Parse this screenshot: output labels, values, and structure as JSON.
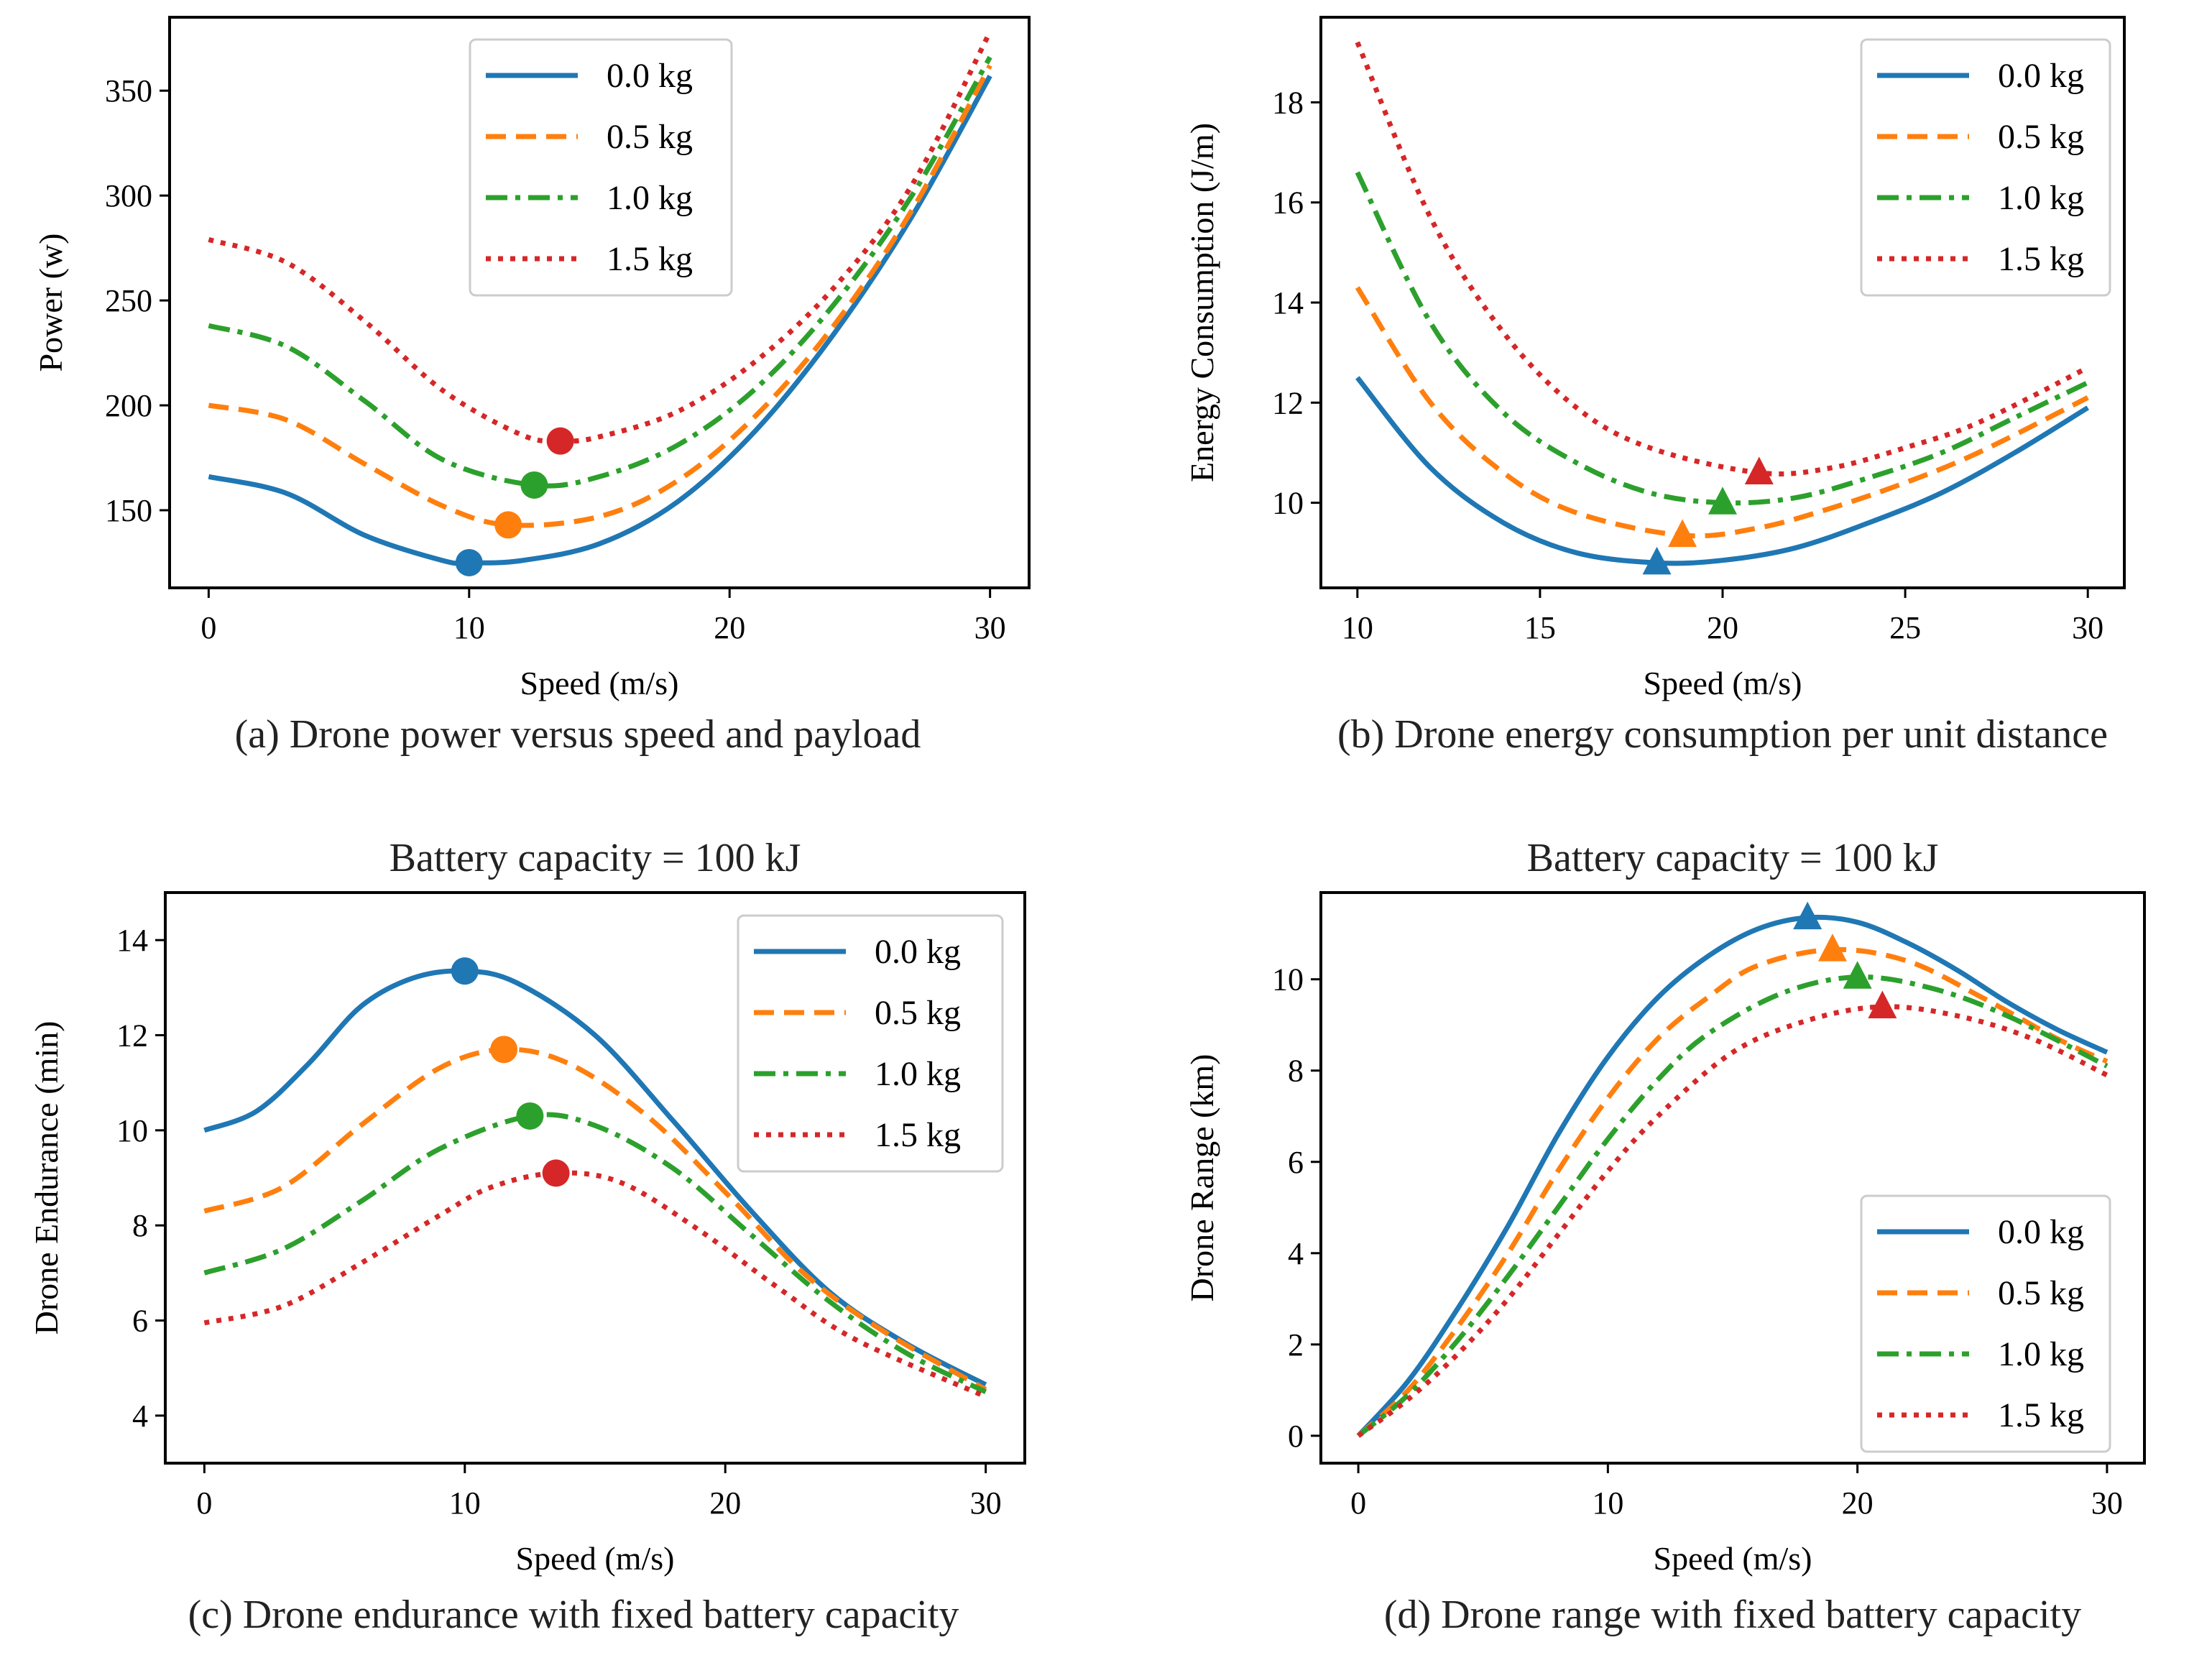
{
  "colors": {
    "s0": "#1f77b4",
    "s1": "#ff7f0e",
    "s2": "#2ca02c",
    "s3": "#d62728"
  },
  "chart_data": [
    {
      "type": "line",
      "caption": "(a) Drone power versus speed and payload",
      "title": "",
      "xlabel": "Speed (m/s)",
      "ylabel": "Power (w)",
      "xlim": [
        -1.5,
        31.5
      ],
      "ylim": [
        113,
        385
      ],
      "xticks": [
        0,
        10,
        20,
        30
      ],
      "yticks": [
        150,
        200,
        250,
        300,
        350
      ],
      "legend": "top-center",
      "marker": "circle",
      "series": [
        {
          "name": "0.0 kg",
          "x": [
            0,
            3,
            6,
            9,
            10,
            12,
            15,
            18,
            21,
            24,
            27,
            30
          ],
          "y": [
            166,
            158,
            138,
            126,
            125,
            126,
            134,
            154,
            188,
            234,
            290,
            357
          ],
          "opt": {
            "x": 10,
            "y": 125
          }
        },
        {
          "name": "0.5 kg",
          "x": [
            0,
            3,
            6,
            9,
            11.5,
            15,
            18,
            21,
            24,
            27,
            30
          ],
          "y": [
            200,
            193,
            172,
            152,
            143,
            147,
            164,
            195,
            238,
            293,
            362
          ],
          "opt": {
            "x": 11.5,
            "y": 143
          }
        },
        {
          "name": "1.0 kg",
          "x": [
            0,
            3,
            6,
            9,
            12.5,
            15,
            18,
            21,
            24,
            27,
            30
          ],
          "y": [
            238,
            228,
            202,
            174,
            162,
            166,
            181,
            208,
            248,
            300,
            366
          ],
          "opt": {
            "x": 12.5,
            "y": 162
          }
        },
        {
          "name": "1.5 kg",
          "x": [
            0,
            3,
            6,
            9,
            12,
            13.5,
            15,
            18,
            21,
            24,
            27,
            30
          ],
          "y": [
            279,
            268,
            240,
            207,
            186,
            183,
            185,
            197,
            221,
            256,
            305,
            378
          ],
          "opt": {
            "x": 13.5,
            "y": 183
          }
        }
      ]
    },
    {
      "type": "line",
      "caption": "(b) Drone energy consumption per unit distance",
      "title": "",
      "xlabel": "Speed (m/s)",
      "ylabel": "Energy Consumption (J/m)",
      "xlim": [
        9,
        31
      ],
      "ylim": [
        8.3,
        19.7
      ],
      "xticks": [
        10,
        15,
        20,
        25,
        30
      ],
      "yticks": [
        10,
        12,
        14,
        16,
        18
      ],
      "legend": "top-right",
      "marker": "triangle",
      "series": [
        {
          "name": "0.0 kg",
          "x": [
            10,
            12,
            14,
            16,
            18.2,
            20,
            22,
            24,
            26,
            28,
            30
          ],
          "y": [
            12.5,
            10.7,
            9.6,
            9.0,
            8.8,
            8.85,
            9.1,
            9.6,
            10.2,
            11.0,
            11.9
          ],
          "opt": {
            "x": 18.2,
            "y": 8.8
          }
        },
        {
          "name": "0.5 kg",
          "x": [
            10,
            12,
            14,
            16,
            18.9,
            21,
            23,
            25,
            27,
            30
          ],
          "y": [
            14.3,
            12.0,
            10.6,
            9.8,
            9.35,
            9.5,
            9.9,
            10.4,
            11.0,
            12.1
          ],
          "opt": {
            "x": 18.9,
            "y": 9.35
          }
        },
        {
          "name": "1.0 kg",
          "x": [
            10,
            12,
            14,
            16,
            18,
            20,
            22,
            24,
            26,
            28,
            30
          ],
          "y": [
            16.6,
            13.6,
            11.8,
            10.8,
            10.2,
            10.0,
            10.1,
            10.5,
            11.0,
            11.7,
            12.4
          ],
          "opt": {
            "x": 20,
            "y": 10.0
          }
        },
        {
          "name": "1.5 kg",
          "x": [
            10,
            12,
            14,
            16,
            18,
            21,
            23,
            25,
            27,
            30
          ],
          "y": [
            19.2,
            15.7,
            13.4,
            11.9,
            11.1,
            10.6,
            10.7,
            11.1,
            11.6,
            12.7
          ],
          "opt": {
            "x": 21,
            "y": 10.6
          }
        }
      ]
    },
    {
      "type": "line",
      "caption": "(c) Drone endurance with fixed battery capacity",
      "title": "Battery capacity = 100 kJ",
      "xlabel": "Speed (m/s)",
      "ylabel": "Drone Endurance (min)",
      "xlim": [
        -1.5,
        31.5
      ],
      "ylim": [
        3.0,
        15.0
      ],
      "xticks": [
        0,
        10,
        20,
        30
      ],
      "yticks": [
        4,
        6,
        8,
        10,
        12,
        14
      ],
      "legend": "top-right",
      "marker": "circle",
      "series": [
        {
          "name": "0.0 kg",
          "x": [
            0,
            2,
            4,
            6,
            8,
            10,
            12,
            15,
            18,
            21,
            24,
            27,
            30
          ],
          "y": [
            10.0,
            10.4,
            11.4,
            12.6,
            13.2,
            13.35,
            13.1,
            12.0,
            10.2,
            8.3,
            6.6,
            5.5,
            4.65
          ],
          "opt": {
            "x": 10,
            "y": 13.35
          }
        },
        {
          "name": "0.5 kg",
          "x": [
            0,
            3,
            6,
            9,
            11.5,
            14,
            17,
            20,
            23,
            26,
            30
          ],
          "y": [
            8.3,
            8.8,
            10.1,
            11.3,
            11.7,
            11.4,
            10.3,
            8.7,
            7.0,
            5.8,
            4.55
          ],
          "opt": {
            "x": 11.5,
            "y": 11.7
          }
        },
        {
          "name": "1.0 kg",
          "x": [
            0,
            3,
            6,
            9,
            12.5,
            15,
            18,
            21,
            24,
            27,
            30
          ],
          "y": [
            7.0,
            7.5,
            8.5,
            9.6,
            10.3,
            10.1,
            9.2,
            7.8,
            6.4,
            5.3,
            4.5
          ],
          "opt": {
            "x": 12.5,
            "y": 10.3
          }
        },
        {
          "name": "1.5 kg",
          "x": [
            0,
            3,
            6,
            9,
            11,
            13.5,
            16,
            19,
            22,
            25,
            30
          ],
          "y": [
            5.95,
            6.3,
            7.2,
            8.2,
            8.8,
            9.1,
            8.9,
            7.9,
            6.7,
            5.6,
            4.4
          ],
          "opt": {
            "x": 13.5,
            "y": 9.1
          }
        }
      ]
    },
    {
      "type": "line",
      "caption": "(d) Drone range with fixed battery capacity",
      "title": "Battery capacity = 100 kJ",
      "xlabel": "Speed (m/s)",
      "ylabel": "Drone Range (km)",
      "xlim": [
        -1.5,
        31.5
      ],
      "ylim": [
        -0.6,
        11.9
      ],
      "xticks": [
        0,
        10,
        20,
        30
      ],
      "yticks": [
        0,
        2,
        4,
        6,
        8,
        10
      ],
      "legend": "bottom-right",
      "marker": "triangle",
      "series": [
        {
          "name": "0.0 kg",
          "x": [
            0,
            2,
            4,
            6,
            8,
            10,
            12,
            14,
            16,
            18,
            20,
            22,
            24,
            26,
            28,
            30
          ],
          "y": [
            0,
            1.2,
            2.8,
            4.6,
            6.6,
            8.3,
            9.6,
            10.5,
            11.1,
            11.35,
            11.25,
            10.8,
            10.2,
            9.5,
            8.9,
            8.4
          ],
          "opt": {
            "x": 18,
            "y": 11.35
          }
        },
        {
          "name": "0.5 kg",
          "x": [
            0,
            2,
            4,
            6,
            8,
            10,
            12,
            14,
            16,
            19,
            22,
            25,
            28,
            30
          ],
          "y": [
            0,
            1.0,
            2.4,
            4.0,
            5.8,
            7.4,
            8.7,
            9.6,
            10.3,
            10.65,
            10.4,
            9.6,
            8.7,
            8.2
          ],
          "opt": {
            "x": 19,
            "y": 10.65
          }
        },
        {
          "name": "1.0 kg",
          "x": [
            0,
            2,
            4,
            6,
            8,
            10,
            12,
            14,
            17,
            20,
            23,
            26,
            30
          ],
          "y": [
            0,
            0.9,
            2.1,
            3.5,
            5.0,
            6.5,
            7.8,
            8.8,
            9.7,
            10.05,
            9.8,
            9.2,
            8.1
          ],
          "opt": {
            "x": 20,
            "y": 10.05
          }
        },
        {
          "name": "1.5 kg",
          "x": [
            0,
            2,
            4,
            6,
            8,
            10,
            12,
            15,
            18,
            21,
            24,
            27,
            30
          ],
          "y": [
            0,
            0.8,
            1.8,
            3.0,
            4.4,
            5.8,
            7.0,
            8.4,
            9.1,
            9.4,
            9.2,
            8.7,
            7.9
          ],
          "opt": {
            "x": 21,
            "y": 9.4
          }
        }
      ]
    }
  ]
}
